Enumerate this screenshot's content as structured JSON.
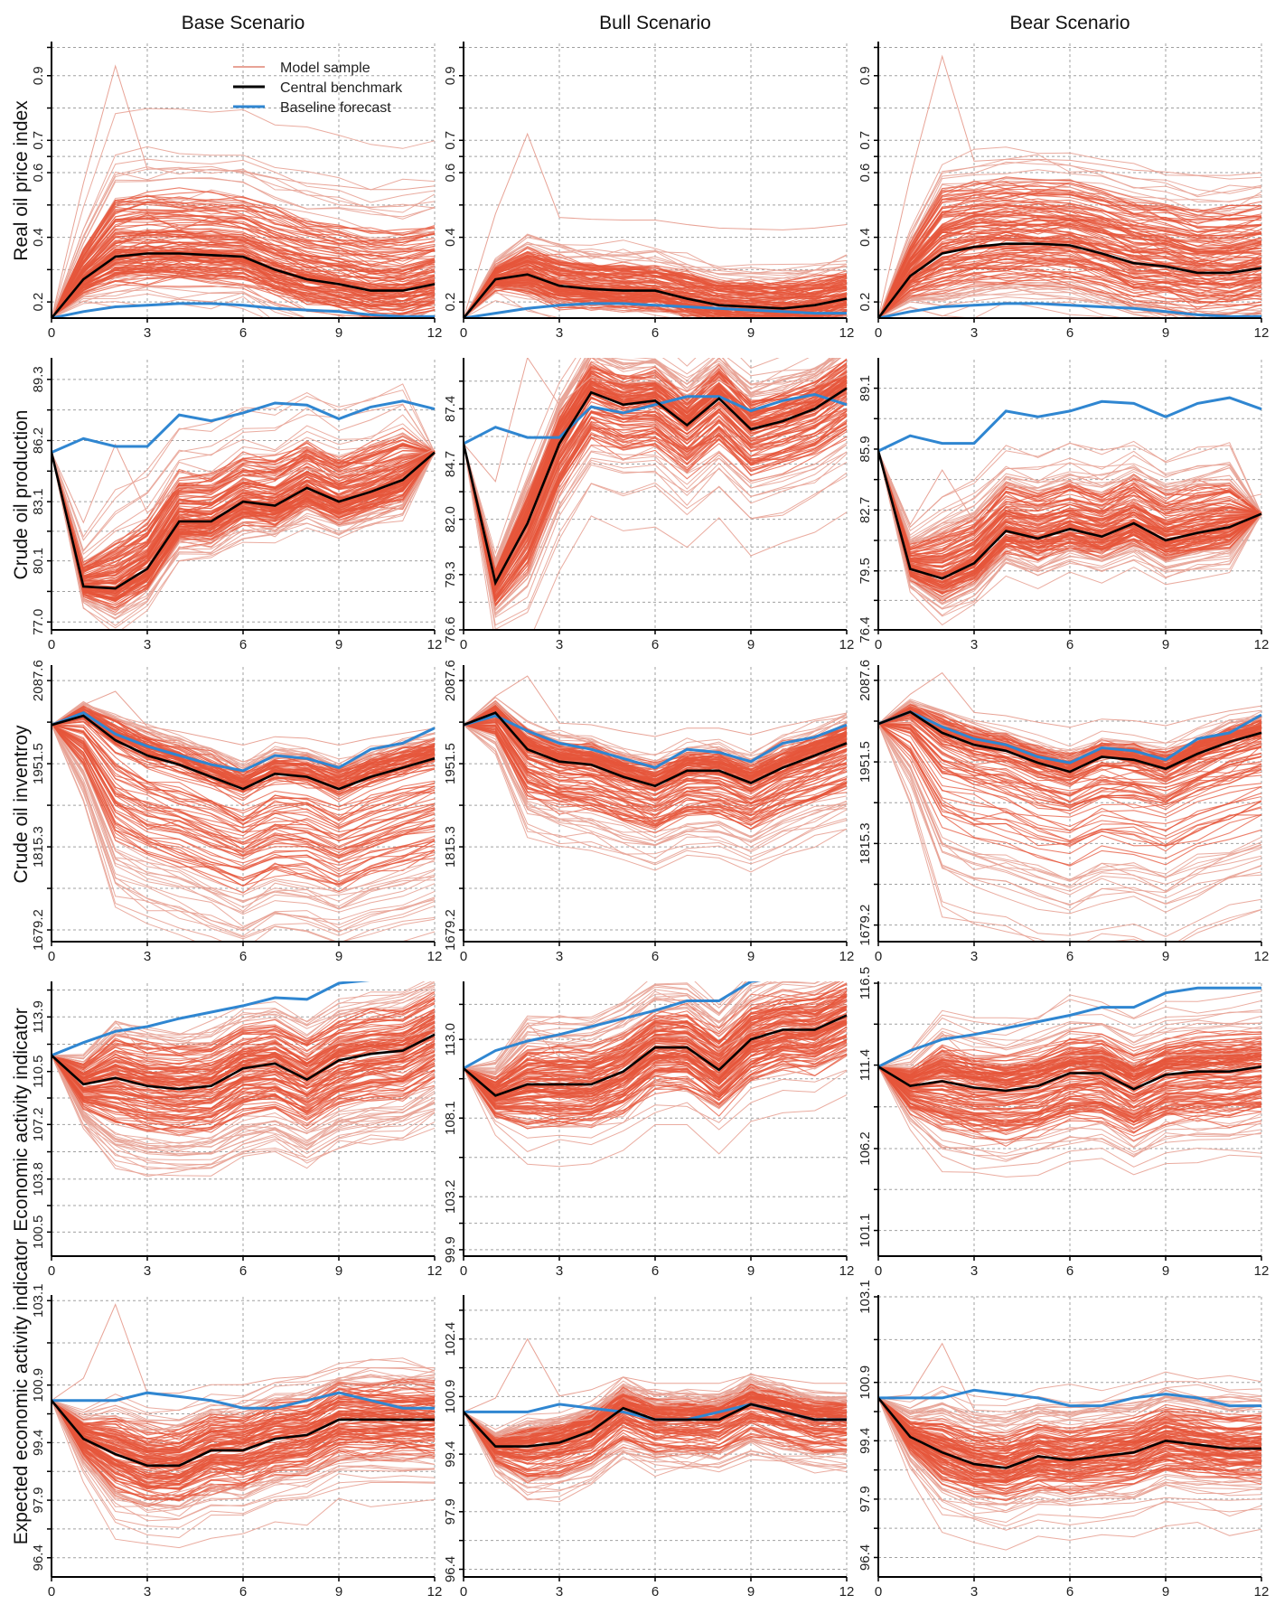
{
  "figure": {
    "columns": [
      "Base Scenario",
      "Bull Scenario",
      "Bear Scenario"
    ],
    "rows": [
      "Real oil price index",
      "Crude oil production",
      "Crude oil inventroy",
      "Economic activity indicator",
      "Expected economic activity indicator"
    ],
    "legend": [
      {
        "label": "Model sample",
        "color": "#e8a396"
      },
      {
        "label": "Central benchmark",
        "color": "#000000"
      },
      {
        "label": "Baseline forecast",
        "color": "#2f86d1"
      }
    ],
    "colors": {
      "sample": "#e6553b",
      "sample_light": "#e8a396",
      "central": "#000000",
      "baseline": "#2f86d1",
      "grid": "#a0a0a0"
    }
  },
  "chart_data": {
    "type": "line",
    "x": [
      0,
      1,
      2,
      3,
      4,
      5,
      6,
      7,
      8,
      9,
      10,
      11,
      12
    ],
    "x_ticks": [
      0,
      3,
      6,
      9,
      12
    ],
    "grid": true,
    "legend_position": "top-right of first panel",
    "panels": [
      {
        "row": 0,
        "col": 0,
        "ylabel": "Real oil price index",
        "title": "Base Scenario",
        "ylim": [
          0.15,
          1.0
        ],
        "y_ticks": [
          0.2,
          0.4,
          0.6,
          0.7,
          0.9
        ],
        "y_tick_labels": [
          "0.2",
          "0.4",
          "0.6",
          "0.7",
          "0.9"
        ],
        "central": [
          0.15,
          0.27,
          0.34,
          0.35,
          0.35,
          0.345,
          0.34,
          0.3,
          0.27,
          0.255,
          0.235,
          0.235,
          0.255
        ],
        "baseline": [
          0.15,
          0.17,
          0.185,
          0.19,
          0.195,
          0.195,
          0.19,
          0.18,
          0.175,
          0.17,
          0.16,
          0.155,
          0.155
        ],
        "sample_spread_low": 0.07,
        "sample_spread_high": 0.12,
        "outlier_peak": 0.93
      },
      {
        "row": 0,
        "col": 1,
        "ylabel": "",
        "title": "Bull Scenario",
        "ylim": [
          0.15,
          1.0
        ],
        "y_ticks": [
          0.2,
          0.4,
          0.6,
          0.7,
          0.9
        ],
        "y_tick_labels": [
          "0.2",
          "0.4",
          "0.6",
          "0.7",
          "0.9"
        ],
        "central": [
          0.15,
          0.27,
          0.285,
          0.25,
          0.24,
          0.235,
          0.235,
          0.21,
          0.19,
          0.185,
          0.18,
          0.19,
          0.21
        ],
        "baseline": [
          0.15,
          0.165,
          0.18,
          0.19,
          0.195,
          0.195,
          0.19,
          0.185,
          0.18,
          0.175,
          0.17,
          0.165,
          0.165
        ],
        "sample_spread_low": 0.04,
        "sample_spread_high": 0.06,
        "outlier_peak": 0.72
      },
      {
        "row": 0,
        "col": 2,
        "ylabel": "",
        "title": "Bear Scenario",
        "ylim": [
          0.15,
          1.0
        ],
        "y_ticks": [
          0.2,
          0.4,
          0.6,
          0.7,
          0.9
        ],
        "y_tick_labels": [
          "0.2",
          "0.4",
          "0.6",
          "0.7",
          "0.9"
        ],
        "central": [
          0.15,
          0.28,
          0.35,
          0.37,
          0.38,
          0.38,
          0.375,
          0.35,
          0.32,
          0.31,
          0.29,
          0.29,
          0.305
        ],
        "baseline": [
          0.15,
          0.17,
          0.185,
          0.19,
          0.195,
          0.195,
          0.19,
          0.185,
          0.18,
          0.17,
          0.16,
          0.155,
          0.155
        ],
        "sample_spread_low": 0.09,
        "sample_spread_high": 0.13,
        "outlier_peak": 0.96
      },
      {
        "row": 1,
        "col": 0,
        "ylabel": "Crude oil production",
        "title": "",
        "ylim": [
          76.6,
          90.3
        ],
        "y_ticks": [
          77.0,
          80.1,
          83.1,
          86.2,
          89.3
        ],
        "y_tick_labels": [
          "77.0",
          "80.1",
          "83.1",
          "86.2",
          "89.3"
        ],
        "central": [
          85.6,
          78.8,
          78.7,
          79.7,
          82.1,
          82.1,
          83.1,
          82.9,
          83.8,
          83.1,
          83.6,
          84.2,
          85.6
        ],
        "baseline": [
          85.6,
          86.3,
          85.9,
          85.9,
          87.5,
          87.2,
          87.6,
          88.1,
          88.0,
          87.3,
          87.9,
          88.2,
          87.8
        ],
        "sample_spread_low": 0.8,
        "sample_spread_high": 1.6,
        "outlier_peak": 86.0
      },
      {
        "row": 1,
        "col": 1,
        "ylabel": "",
        "title": "",
        "ylim": [
          76.6,
          89.8
        ],
        "y_ticks": [
          76.6,
          79.3,
          82.0,
          84.7,
          87.4
        ],
        "y_tick_labels": [
          "76.6",
          "79.3",
          "82.0",
          "84.7",
          "87.4"
        ],
        "central": [
          85.7,
          78.9,
          81.8,
          85.7,
          88.2,
          87.6,
          87.8,
          86.6,
          87.9,
          86.4,
          86.8,
          87.4,
          88.4
        ],
        "baseline": [
          85.7,
          86.5,
          86.0,
          86.0,
          87.5,
          87.2,
          87.6,
          88.0,
          88.0,
          87.3,
          87.8,
          88.1,
          87.6
        ],
        "sample_spread_low": 1.8,
        "sample_spread_high": 1.0,
        "outlier_peak": 89.9
      },
      {
        "row": 1,
        "col": 2,
        "ylabel": "",
        "title": "",
        "ylim": [
          76.4,
          90.6
        ],
        "y_ticks": [
          76.4,
          79.5,
          82.7,
          85.9,
          89.1
        ],
        "y_tick_labels": [
          "76.4",
          "79.5",
          "82.7",
          "85.9",
          "89.1"
        ],
        "central": [
          85.8,
          79.6,
          79.1,
          79.9,
          81.6,
          81.2,
          81.7,
          81.3,
          82.0,
          81.1,
          81.5,
          81.8,
          82.5
        ],
        "baseline": [
          85.8,
          86.6,
          86.2,
          86.2,
          87.9,
          87.6,
          87.9,
          88.4,
          88.3,
          87.6,
          88.3,
          88.6,
          88.0
        ],
        "sample_spread_low": 0.8,
        "sample_spread_high": 1.6,
        "outlier_peak": 84.8
      },
      {
        "row": 2,
        "col": 0,
        "ylabel": "Crude oil inventroy",
        "title": "",
        "ylim": [
          1660,
          2110
        ],
        "y_ticks": [
          1679.2,
          1815.3,
          1951.5,
          2087.6
        ],
        "y_tick_labels": [
          "1679.2",
          "1815.3",
          "1951.5",
          "2087.6"
        ],
        "central": [
          2015,
          2030,
          1990,
          1965,
          1950,
          1930,
          1910,
          1935,
          1930,
          1910,
          1930,
          1945,
          1960
        ],
        "baseline": [
          2015,
          2035,
          2000,
          1980,
          1965,
          1950,
          1940,
          1965,
          1960,
          1945,
          1975,
          1985,
          2010
        ],
        "sample_spread_low": 120,
        "sample_spread_high": 20,
        "outlier_peak": 2070
      },
      {
        "row": 2,
        "col": 1,
        "ylabel": "",
        "title": "",
        "ylim": [
          1660,
          2110
        ],
        "y_ticks": [
          1679.2,
          1815.3,
          1951.5,
          2087.6
        ],
        "y_tick_labels": [
          "1679.2",
          "1815.3",
          "1951.5",
          "2087.6"
        ],
        "central": [
          2015,
          2035,
          1975,
          1955,
          1950,
          1930,
          1915,
          1940,
          1940,
          1920,
          1945,
          1965,
          1985
        ],
        "baseline": [
          2015,
          2030,
          2005,
          1985,
          1975,
          1960,
          1945,
          1975,
          1970,
          1955,
          1985,
          1995,
          2015
        ],
        "sample_spread_low": 60,
        "sample_spread_high": 20,
        "outlier_peak": 2095
      },
      {
        "row": 2,
        "col": 2,
        "ylabel": "",
        "title": "",
        "ylim": [
          1651.5,
          2110
        ],
        "y_ticks": [
          1679.2,
          1815.3,
          1951.5,
          2087.6
        ],
        "y_tick_labels": [
          "1679.2",
          "1815.3",
          "1951.5",
          "2087.6"
        ],
        "central": [
          2015,
          2035,
          2000,
          1980,
          1970,
          1950,
          1935,
          1960,
          1955,
          1940,
          1965,
          1985,
          2000
        ],
        "baseline": [
          2015,
          2035,
          2010,
          1990,
          1980,
          1960,
          1950,
          1975,
          1970,
          1955,
          1990,
          2000,
          2030
        ],
        "sample_spread_low": 120,
        "sample_spread_high": 15,
        "outlier_peak": 2100
      },
      {
        "row": 3,
        "col": 0,
        "ylabel": "Economic activity indicator",
        "title": "",
        "ylim": [
          99.0,
          116.0
        ],
        "y_ticks": [
          100.5,
          103.8,
          107.2,
          110.5,
          113.9
        ],
        "y_tick_labels": [
          "100.5",
          "103.8",
          "107.2",
          "110.5",
          "113.9"
        ],
        "central": [
          111.5,
          109.7,
          110.1,
          109.6,
          109.4,
          109.6,
          110.7,
          111.0,
          110.0,
          111.2,
          111.6,
          111.8,
          112.8
        ],
        "baseline": [
          111.5,
          112.3,
          113.0,
          113.3,
          113.8,
          114.2,
          114.6,
          115.1,
          115.0,
          116.0,
          116.2,
          116.2,
          116.2
        ],
        "sample_spread_low": 2.2,
        "sample_spread_high": 1.8,
        "outlier_peak": 113.6
      },
      {
        "row": 3,
        "col": 1,
        "ylabel": "",
        "title": "",
        "ylim": [
          99.5,
          116.5
        ],
        "y_ticks": [
          99.9,
          103.2,
          108.1,
          113.0
        ],
        "y_tick_labels": [
          "99.9",
          "103.2",
          "108.1",
          "113.0"
        ],
        "central": [
          111.2,
          109.5,
          110.2,
          110.2,
          110.2,
          111.0,
          112.5,
          112.5,
          111.1,
          113.0,
          113.6,
          113.6,
          114.5
        ],
        "baseline": [
          111.2,
          112.3,
          112.9,
          113.3,
          113.8,
          114.3,
          114.8,
          115.4,
          115.4,
          116.6,
          116.9,
          116.9,
          116.9
        ],
        "sample_spread_low": 1.8,
        "sample_spread_high": 1.6,
        "outlier_peak": 114.0
      },
      {
        "row": 3,
        "col": 2,
        "ylabel": "",
        "title": "",
        "ylim": [
          99.5,
          116.5
        ],
        "y_ticks": [
          101.1,
          106.2,
          111.4,
          116.5
        ],
        "y_tick_labels": [
          "101.1",
          "106.2",
          "111.4",
          "116.5"
        ],
        "central": [
          111.3,
          110.1,
          110.4,
          110.0,
          109.8,
          110.1,
          110.9,
          110.9,
          109.9,
          110.8,
          111.0,
          111.0,
          111.3
        ],
        "baseline": [
          111.3,
          112.3,
          113.0,
          113.3,
          113.7,
          114.1,
          114.5,
          115.0,
          115.0,
          115.9,
          116.2,
          116.2,
          116.2
        ],
        "sample_spread_low": 2.2,
        "sample_spread_high": 1.6,
        "outlier_peak": 113.4
      },
      {
        "row": 4,
        "col": 0,
        "ylabel": "Expected economic activity indicator",
        "title": "",
        "ylim": [
          95.9,
          103.2
        ],
        "y_ticks": [
          96.4,
          97.9,
          99.4,
          100.9,
          103.1
        ],
        "y_tick_labels": [
          "96.4",
          "97.9",
          "99.4",
          "100.9",
          "103.1"
        ],
        "central": [
          100.5,
          99.5,
          99.1,
          98.8,
          98.8,
          99.2,
          99.2,
          99.5,
          99.6,
          100.0,
          100.0,
          100.0,
          100.0
        ],
        "baseline": [
          100.5,
          100.5,
          100.5,
          100.7,
          100.6,
          100.5,
          100.3,
          100.3,
          100.5,
          100.7,
          100.5,
          100.3,
          100.3
        ],
        "sample_spread_low": 0.7,
        "sample_spread_high": 0.6,
        "outlier_peak": 103.0
      },
      {
        "row": 4,
        "col": 1,
        "ylabel": "",
        "title": "",
        "ylim": [
          96.2,
          103.5
        ],
        "y_ticks": [
          96.4,
          97.9,
          99.4,
          100.9,
          102.4
        ],
        "y_tick_labels": [
          "96.4",
          "97.9",
          "99.4",
          "100.9",
          "102.4"
        ],
        "central": [
          100.5,
          99.6,
          99.6,
          99.7,
          100.0,
          100.6,
          100.3,
          100.3,
          100.3,
          100.7,
          100.5,
          100.3,
          100.3
        ],
        "baseline": [
          100.5,
          100.5,
          100.5,
          100.7,
          100.6,
          100.5,
          100.3,
          100.3,
          100.5,
          100.7,
          100.5,
          100.3,
          100.3
        ],
        "sample_spread_low": 0.6,
        "sample_spread_high": 0.3,
        "outlier_peak": 102.4
      },
      {
        "row": 4,
        "col": 2,
        "ylabel": "",
        "title": "",
        "ylim": [
          95.9,
          103.1
        ],
        "y_ticks": [
          96.4,
          97.9,
          99.4,
          100.9,
          103.1
        ],
        "y_tick_labels": [
          "96.4",
          "97.9",
          "99.4",
          "100.9",
          "103.1"
        ],
        "central": [
          100.5,
          99.5,
          99.1,
          98.8,
          98.7,
          99.0,
          98.9,
          99.0,
          99.1,
          99.4,
          99.3,
          99.2,
          99.2
        ],
        "baseline": [
          100.5,
          100.5,
          100.5,
          100.7,
          100.6,
          100.5,
          100.3,
          100.3,
          100.5,
          100.6,
          100.5,
          100.3,
          100.3
        ],
        "sample_spread_low": 0.6,
        "sample_spread_high": 0.6,
        "outlier_peak": 101.9
      }
    ]
  }
}
